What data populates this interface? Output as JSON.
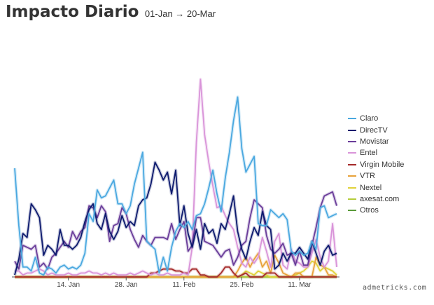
{
  "header": {
    "title": "Impacto Diario",
    "subtitle": "01-Jan → 20-Mar"
  },
  "credit": "admetricks.com",
  "chart_data": {
    "type": "line",
    "title": "Impacto Diario",
    "subtitle": "01-Jan → 20-Mar",
    "x_start": "2015-01-01",
    "x_end": "2015-03-20",
    "x_ticks": [
      "14. Jan",
      "28. Jan",
      "11. Feb",
      "25. Feb",
      "11. Mar"
    ],
    "ylim": [
      0,
      1.0
    ],
    "grid": false,
    "legend_position": "right",
    "dates": [
      "01-Jan",
      "02-Jan",
      "03-Jan",
      "04-Jan",
      "05-Jan",
      "06-Jan",
      "07-Jan",
      "08-Jan",
      "09-Jan",
      "10-Jan",
      "11-Jan",
      "12-Jan",
      "13-Jan",
      "14-Jan",
      "15-Jan",
      "16-Jan",
      "17-Jan",
      "18-Jan",
      "19-Jan",
      "20-Jan",
      "21-Jan",
      "22-Jan",
      "23-Jan",
      "24-Jan",
      "25-Jan",
      "26-Jan",
      "27-Jan",
      "28-Jan",
      "29-Jan",
      "30-Jan",
      "31-Jan",
      "01-Feb",
      "02-Feb",
      "03-Feb",
      "04-Feb",
      "05-Feb",
      "06-Feb",
      "07-Feb",
      "08-Feb",
      "09-Feb",
      "10-Feb",
      "11-Feb",
      "12-Feb",
      "13-Feb",
      "14-Feb",
      "15-Feb",
      "16-Feb",
      "17-Feb",
      "18-Feb",
      "19-Feb",
      "20-Feb",
      "21-Feb",
      "22-Feb",
      "23-Feb",
      "24-Feb",
      "25-Feb",
      "26-Feb",
      "27-Feb",
      "28-Feb",
      "01-Mar",
      "02-Mar",
      "03-Mar",
      "04-Mar",
      "05-Mar",
      "06-Mar",
      "07-Mar",
      "08-Mar",
      "09-Mar",
      "10-Mar",
      "11-Mar",
      "12-Mar",
      "13-Mar",
      "14-Mar",
      "15-Mar",
      "16-Mar",
      "17-Mar",
      "18-Mar",
      "19-Mar",
      "20-Mar"
    ],
    "series": [
      {
        "name": "Claro",
        "color": "#4aa8e0",
        "values": [
          0.55,
          0.26,
          0.05,
          0.05,
          0.03,
          0.1,
          0.02,
          0.01,
          0.05,
          0.04,
          0.02,
          0.05,
          0.06,
          0.04,
          0.05,
          0.04,
          0.06,
          0.12,
          0.32,
          0.28,
          0.44,
          0.4,
          0.41,
          0.45,
          0.49,
          0.37,
          0.37,
          0.32,
          0.36,
          0.47,
          0.55,
          0.63,
          0.18,
          0.16,
          0.14,
          0.02,
          0.1,
          0.03,
          0.15,
          0.23,
          0.27,
          0.25,
          0.28,
          0.24,
          0.31,
          0.32,
          0.37,
          0.45,
          0.54,
          0.42,
          0.33,
          0.5,
          0.63,
          0.79,
          0.91,
          0.65,
          0.53,
          0.57,
          0.61,
          0.27,
          0.26,
          0.26,
          0.34,
          0.32,
          0.3,
          0.32,
          0.29,
          0.13,
          0.11,
          0.13,
          0.11,
          0.12,
          0.18,
          0.14,
          0.35,
          0.36,
          0.3,
          0.31,
          0.32
        ]
      },
      {
        "name": "DirecTV",
        "color": "#0d1a6e",
        "values": [
          0.01,
          0.09,
          0.22,
          0.2,
          0.37,
          0.34,
          0.3,
          0.11,
          0.16,
          0.14,
          0.11,
          0.24,
          0.16,
          0.16,
          0.14,
          0.16,
          0.2,
          0.28,
          0.34,
          0.37,
          0.27,
          0.24,
          0.32,
          0.23,
          0.19,
          0.23,
          0.31,
          0.25,
          0.28,
          0.26,
          0.36,
          0.39,
          0.4,
          0.47,
          0.58,
          0.54,
          0.49,
          0.53,
          0.42,
          0.54,
          0.26,
          0.36,
          0.22,
          0.15,
          0.24,
          0.14,
          0.27,
          0.22,
          0.24,
          0.17,
          0.27,
          0.24,
          0.32,
          0.41,
          0.23,
          0.14,
          0.09,
          0.18,
          0.25,
          0.21,
          0.33,
          0.26,
          0.24,
          0.04,
          0.06,
          0.12,
          0.08,
          0.12,
          0.12,
          0.15,
          0.12,
          0.09,
          0.18,
          0.12,
          0.06,
          0.13,
          0.16,
          0.11,
          0.12
        ]
      },
      {
        "name": "Movistar",
        "color": "#6a3d9a",
        "values": [
          0.08,
          0.04,
          0.16,
          0.15,
          0.14,
          0.16,
          0.05,
          0.07,
          0.04,
          0.1,
          0.12,
          0.15,
          0.18,
          0.15,
          0.23,
          0.19,
          0.23,
          0.25,
          0.36,
          0.35,
          0.3,
          0.36,
          0.33,
          0.18,
          0.26,
          0.27,
          0.35,
          0.32,
          0.24,
          0.19,
          0.15,
          0.21,
          0.18,
          0.16,
          0.2,
          0.2,
          0.2,
          0.19,
          0.27,
          0.19,
          0.24,
          0.28,
          0.13,
          0.16,
          0.3,
          0.3,
          0.18,
          0.17,
          0.16,
          0.13,
          0.1,
          0.13,
          0.14,
          0.06,
          0.1,
          0.16,
          0.18,
          0.3,
          0.39,
          0.37,
          0.35,
          0.21,
          0.14,
          0.12,
          0.14,
          0.17,
          0.11,
          0.12,
          0.06,
          0.13,
          0.06,
          0.06,
          0.16,
          0.25,
          0.35,
          0.41,
          0.42,
          0.43,
          0.36
        ]
      },
      {
        "name": "Entel",
        "color": "#d994d9",
        "values": [
          0.03,
          0.03,
          0.01,
          0.02,
          0.02,
          0.03,
          0.04,
          0.03,
          0.01,
          0.02,
          0.01,
          0.01,
          0.01,
          0.02,
          0.01,
          0.01,
          0.02,
          0.02,
          0.03,
          0.02,
          0.02,
          0.01,
          0.02,
          0.01,
          0.02,
          0.01,
          0.01,
          0.01,
          0.02,
          0.01,
          0.02,
          0.03,
          0.02,
          0.01,
          0.02,
          0.01,
          0.01,
          0.02,
          0.01,
          0.01,
          0.01,
          0.02,
          0.01,
          0.15,
          0.68,
          1.0,
          0.72,
          0.58,
          0.46,
          0.35,
          0.36,
          0.31,
          0.27,
          0.24,
          0.15,
          0.07,
          0.05,
          0.1,
          0.07,
          0.1,
          0.2,
          0.13,
          0.05,
          0.18,
          0.22,
          0.06,
          0.04,
          0.14,
          0.08,
          0.07,
          0.05,
          0.05,
          0.12,
          0.19,
          0.1,
          0.05,
          0.08,
          0.27,
          0.05
        ]
      },
      {
        "name": "Virgin Mobile",
        "color": "#a52a2a",
        "values": [
          0.0,
          0.0,
          0.0,
          0.0,
          0.0,
          0.0,
          0.0,
          0.0,
          0.0,
          0.0,
          0.0,
          0.0,
          0.0,
          0.0,
          0.0,
          0.0,
          0.0,
          0.0,
          0.0,
          0.0,
          0.0,
          0.0,
          0.0,
          0.0,
          0.0,
          0.0,
          0.0,
          0.0,
          0.0,
          0.0,
          0.0,
          0.0,
          0.0,
          0.02,
          0.02,
          0.03,
          0.04,
          0.04,
          0.04,
          0.03,
          0.03,
          0.02,
          0.02,
          0.04,
          0.04,
          0.01,
          0.01,
          0.0,
          0.0,
          0.0,
          0.02,
          0.05,
          0.05,
          0.02,
          0.0,
          0.01,
          0.02,
          0.0,
          0.0,
          0.0,
          0.0,
          0.02,
          0.02,
          0.02,
          0.0,
          0.0,
          0.0,
          0.0,
          0.0,
          0.0,
          0.0,
          0.0,
          0.0,
          0.0,
          0.0,
          0.0,
          0.0,
          0.0,
          0.0
        ]
      },
      {
        "name": "VTR",
        "color": "#e8a23a",
        "values": [
          0.0,
          0.0,
          0.0,
          0.0,
          0.0,
          0.0,
          0.0,
          0.0,
          0.0,
          0.0,
          0.0,
          0.0,
          0.0,
          0.0,
          0.0,
          0.0,
          0.0,
          0.0,
          0.0,
          0.0,
          0.0,
          0.0,
          0.0,
          0.0,
          0.0,
          0.0,
          0.0,
          0.0,
          0.0,
          0.0,
          0.0,
          0.0,
          0.0,
          0.0,
          0.0,
          0.0,
          0.0,
          0.0,
          0.0,
          0.0,
          0.0,
          0.0,
          0.0,
          0.0,
          0.0,
          0.0,
          0.0,
          0.0,
          0.0,
          0.0,
          0.0,
          0.0,
          0.0,
          0.0,
          0.03,
          0.07,
          0.1,
          0.05,
          0.09,
          0.12,
          0.05,
          0.08,
          0.02,
          0.11,
          0.07,
          0.02,
          0.01,
          0.0,
          0.02,
          0.02,
          0.0,
          0.0,
          0.0,
          0.1,
          0.06,
          0.05,
          0.01,
          0.01,
          0.0
        ]
      },
      {
        "name": "Nextel",
        "color": "#e0d23a",
        "values": [
          0.0,
          0.0,
          0.0,
          0.0,
          0.0,
          0.0,
          0.0,
          0.0,
          0.0,
          0.0,
          0.0,
          0.0,
          0.0,
          0.0,
          0.0,
          0.0,
          0.0,
          0.0,
          0.0,
          0.0,
          0.0,
          0.0,
          0.0,
          0.0,
          0.0,
          0.0,
          0.0,
          0.0,
          0.0,
          0.0,
          0.0,
          0.0,
          0.0,
          0.0,
          0.0,
          0.0,
          0.0,
          0.0,
          0.0,
          0.0,
          0.0,
          0.0,
          0.0,
          0.0,
          0.0,
          0.0,
          0.0,
          0.0,
          0.0,
          0.0,
          0.0,
          0.0,
          0.0,
          0.0,
          0.0,
          0.01,
          0.03,
          0.02,
          0.01,
          0.03,
          0.02,
          0.01,
          0.0,
          0.0,
          0.0,
          0.0,
          0.0,
          0.0,
          0.01,
          0.02,
          0.03,
          0.05,
          0.08,
          0.07,
          0.03,
          0.05,
          0.04,
          0.03,
          0.01
        ]
      },
      {
        "name": "axesat.com",
        "color": "#b5cc3a",
        "values": [
          0.0,
          0.0,
          0.0,
          0.0,
          0.0,
          0.0,
          0.0,
          0.0,
          0.0,
          0.0,
          0.0,
          0.0,
          0.0,
          0.0,
          0.0,
          0.0,
          0.0,
          0.0,
          0.0,
          0.0,
          0.0,
          0.0,
          0.0,
          0.0,
          0.0,
          0.0,
          0.0,
          0.0,
          0.0,
          0.0,
          0.0,
          0.0,
          0.0,
          0.0,
          0.0,
          0.0,
          0.0,
          0.0,
          0.0,
          0.0,
          0.0,
          0.0,
          0.0,
          0.0,
          0.0,
          0.0,
          0.0,
          0.0,
          0.0,
          0.0,
          0.0,
          0.0,
          0.0,
          0.0,
          0.0,
          0.0,
          0.0,
          0.0,
          0.0,
          0.0,
          0.0,
          0.0,
          0.0,
          0.0,
          0.0,
          0.0,
          0.0,
          0.0,
          0.0,
          0.0,
          0.0,
          0.0,
          0.0,
          0.0,
          0.0,
          0.0,
          0.0,
          0.0,
          0.0
        ]
      },
      {
        "name": "Otros",
        "color": "#5a9a3a",
        "values": [
          0.0,
          0.0,
          0.0,
          0.0,
          0.0,
          0.0,
          0.0,
          0.0,
          0.0,
          0.0,
          0.0,
          0.0,
          0.0,
          0.0,
          0.0,
          0.0,
          0.0,
          0.0,
          0.0,
          0.0,
          0.0,
          0.0,
          0.0,
          0.0,
          0.0,
          0.0,
          0.0,
          0.0,
          0.0,
          0.0,
          0.0,
          0.0,
          0.0,
          0.0,
          0.0,
          0.0,
          0.0,
          0.0,
          0.0,
          0.0,
          0.0,
          0.0,
          0.0,
          0.0,
          0.0,
          0.0,
          0.0,
          0.0,
          0.0,
          0.0,
          0.0,
          0.0,
          0.0,
          0.0,
          0.0,
          0.0,
          0.0,
          0.0,
          0.0,
          0.0,
          0.0,
          0.0,
          0.0,
          0.0,
          0.0,
          0.0,
          0.0,
          0.0,
          0.0,
          0.0,
          0.0,
          0.0,
          0.0,
          0.0,
          0.0,
          0.0,
          0.0,
          0.0,
          0.0
        ]
      }
    ]
  }
}
